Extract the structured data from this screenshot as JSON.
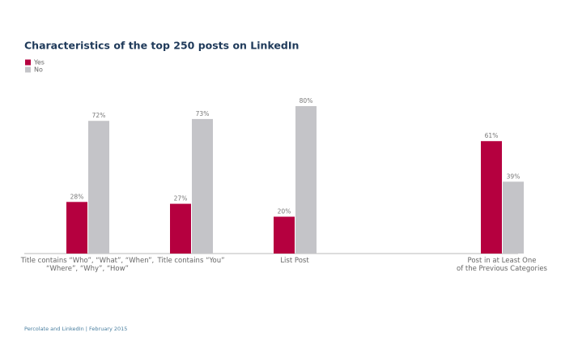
{
  "chart_data": {
    "type": "bar",
    "title": "Characteristics of the top 250 posts on LinkedIn",
    "categories": [
      "Title contains “Who”, “What”, “When”,\n“Where”, “Why”, “How”",
      "Title contains “You”",
      "List Post",
      null,
      "Post in at Least One\nof the Previous Categories"
    ],
    "series": [
      {
        "name": "Yes",
        "color": "#b5003f",
        "values": [
          28,
          27,
          20,
          null,
          61
        ],
        "value_labels": [
          "28%",
          "27%",
          "20%",
          null,
          "61%"
        ]
      },
      {
        "name": "No",
        "color": "#c4c4c8",
        "values": [
          72,
          73,
          80,
          null,
          39
        ],
        "value_labels": [
          "72%",
          "73%",
          "80%",
          null,
          "39%"
        ]
      }
    ],
    "ylim": [
      0,
      100
    ],
    "legend": "top-left",
    "footer": "Percolate and LinkedIn | February 2015"
  }
}
